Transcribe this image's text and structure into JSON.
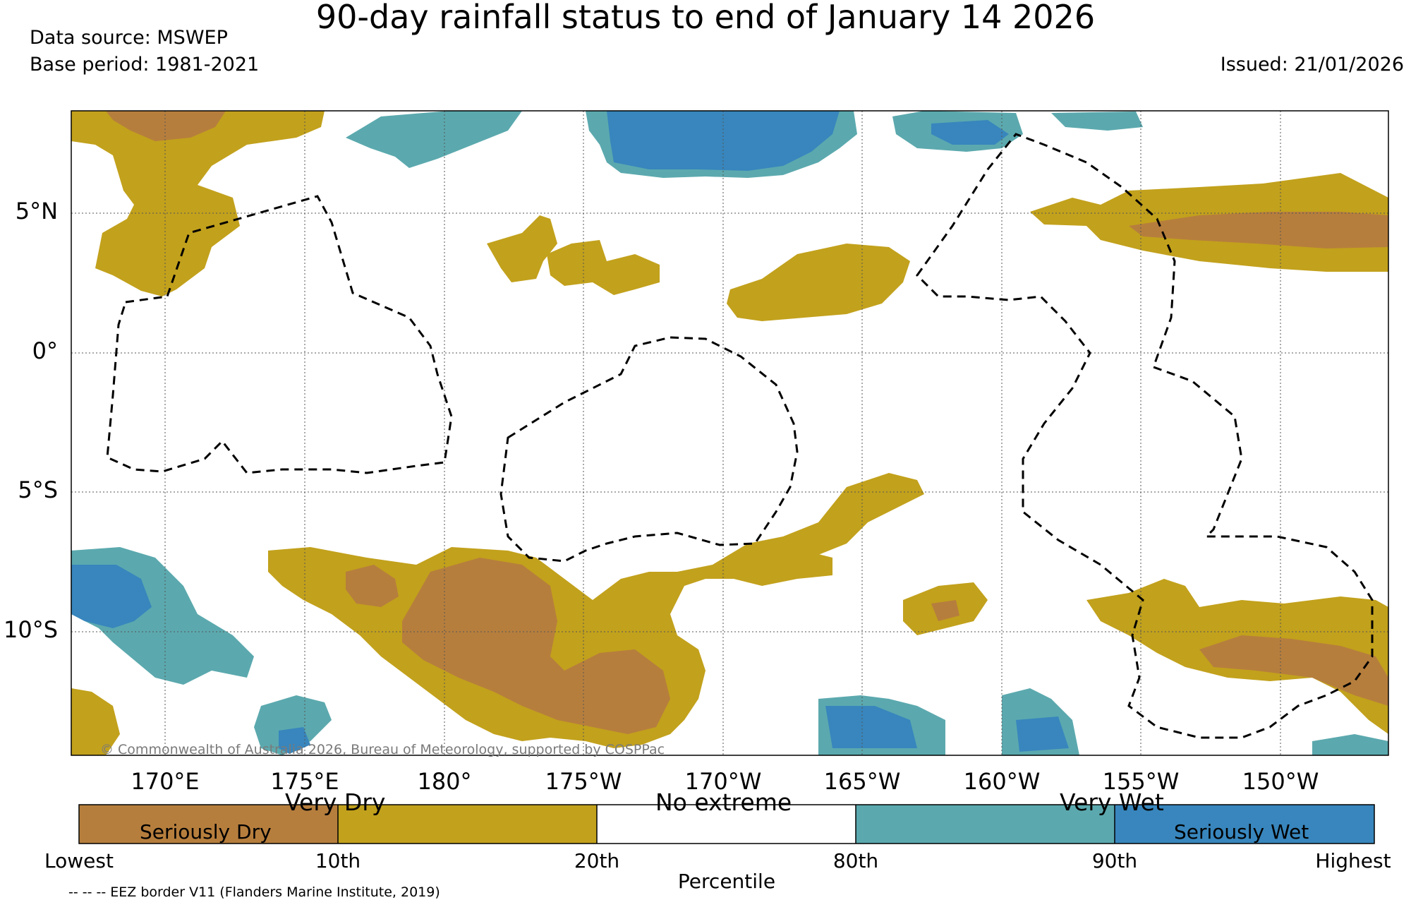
{
  "title": "90-day rainfall status to end of January 14 2026",
  "data_source": "Data source: MSWEP",
  "base_period": "Base period: 1981-2021",
  "issued": "Issued: 21/01/2026",
  "copyright": "© Commonwealth of Australia 2026, Bureau of Meteorology, supported by COSPPac",
  "lat_labels": [
    "5°N",
    "0°",
    "5°S",
    "10°S"
  ],
  "lon_labels": [
    "170°E",
    "175°E",
    "180°",
    "175°W",
    "170°W",
    "165°W",
    "160°W",
    "155°W",
    "150°W"
  ],
  "colorbar": {
    "categories": [
      "Seriously Dry",
      "Very Dry",
      "No extreme",
      "Very Wet",
      "Seriously Wet"
    ],
    "ticks": [
      "Lowest",
      "10th",
      "20th",
      "80th",
      "90th",
      "Highest"
    ],
    "xlabel": "Percentile",
    "colors": {
      "seriously_dry": "#b67e3d",
      "very_dry": "#c2a11c",
      "no_extreme": "#ffffff",
      "very_wet": "#5ba9ae",
      "seriously_wet": "#3886bd"
    }
  },
  "legend_note": "-- -- -- EEZ border V11 (Flanders Marine Institute, 2019)"
}
